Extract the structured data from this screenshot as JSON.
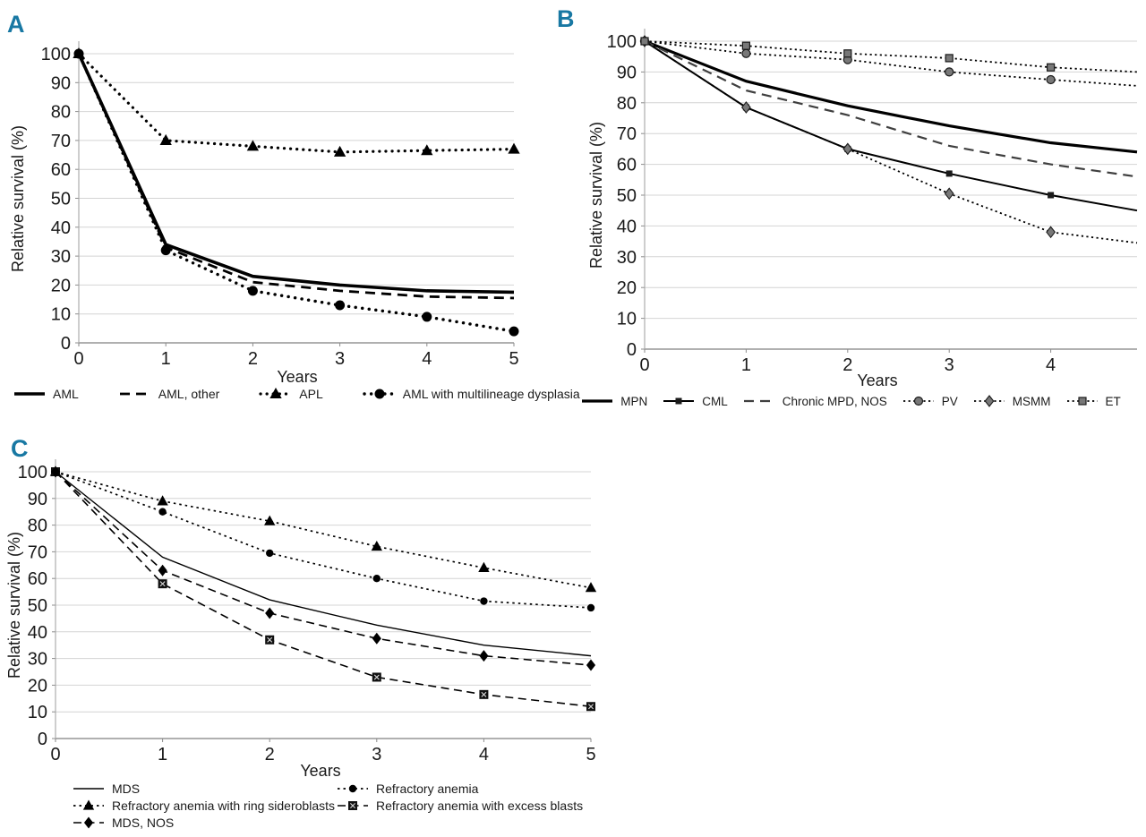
{
  "figure": {
    "background": "#ffffff",
    "panel_letter_color": "#1878a3",
    "grid_color": "#d4d4d4",
    "axis_color": "#8c8c8c",
    "text_color": "#1a1a1a"
  },
  "chart_data": [
    {
      "type": "line",
      "panel_label": "A",
      "title": "",
      "xlabel": "Years",
      "ylabel": "Relative survival (%)",
      "x": [
        0,
        1,
        2,
        3,
        4,
        5
      ],
      "x_ticks": [
        0,
        1,
        2,
        3,
        4,
        5
      ],
      "y_ticks": [
        0,
        10,
        20,
        30,
        40,
        50,
        60,
        70,
        80,
        90,
        100
      ],
      "xlim": [
        0,
        5
      ],
      "ylim": [
        0,
        100
      ],
      "grid": "horizontal",
      "legend_position": "bottom-row",
      "series": [
        {
          "name": "AML",
          "values": [
            100,
            34,
            23,
            20,
            18,
            17.5
          ],
          "color": "#000000",
          "line_width": 3.6,
          "dash": "",
          "linecap": "butt",
          "marker": "none",
          "marker_size": 0,
          "marker_fill": "#000000",
          "marker_stroke": "none"
        },
        {
          "name": "AML, other",
          "values": [
            100,
            33,
            21,
            18,
            16,
            15.5
          ],
          "color": "#000000",
          "line_width": 2.8,
          "dash": "11 7",
          "linecap": "butt",
          "marker": "none",
          "marker_size": 0,
          "marker_fill": "#000000",
          "marker_stroke": "none"
        },
        {
          "name": "APL",
          "values": [
            100,
            70,
            68,
            66,
            66.5,
            67
          ],
          "color": "#000000",
          "line_width": 3.2,
          "dash": "0.1 7",
          "linecap": "round",
          "marker": "triangle",
          "marker_size": 7,
          "marker_fill": "#000000",
          "marker_stroke": "none"
        },
        {
          "name": "AML with multilineage dysplasia",
          "values": [
            100,
            32,
            18,
            13,
            9,
            4
          ],
          "color": "#000000",
          "line_width": 3.4,
          "dash": "0.1 7.5",
          "linecap": "round",
          "marker": "circle",
          "marker_size": 5.5,
          "marker_fill": "#000000",
          "marker_stroke": "none"
        }
      ]
    },
    {
      "type": "line",
      "panel_label": "B",
      "title": "",
      "xlabel": "Years",
      "ylabel": "Relative survival (%)",
      "x": [
        0,
        1,
        2,
        3,
        4,
        4.85
      ],
      "x_ticks": [
        0,
        1,
        2,
        3,
        4
      ],
      "y_ticks": [
        0,
        10,
        20,
        30,
        40,
        50,
        60,
        70,
        80,
        90,
        100
      ],
      "xlim": [
        0,
        4.85
      ],
      "ylim": [
        0,
        100
      ],
      "grid": "horizontal",
      "legend_position": "bottom-row",
      "series": [
        {
          "name": "MPN",
          "values": [
            100,
            87,
            79,
            72.5,
            67,
            64
          ],
          "color": "#000000",
          "line_width": 3.2,
          "dash": "",
          "linecap": "butt",
          "marker": "none",
          "marker_size": 0,
          "marker_fill": "#000000",
          "marker_stroke": "none"
        },
        {
          "name": "CML",
          "values": [
            100,
            78.5,
            65,
            57,
            50,
            45
          ],
          "color": "#000000",
          "line_width": 2,
          "dash": "",
          "linecap": "butt",
          "marker": "square",
          "marker_size": 7,
          "marker_fill": "#1a1a1a",
          "marker_stroke": "none"
        },
        {
          "name": "Chronic MPD, NOS",
          "values": [
            100,
            84,
            76,
            66,
            60,
            56
          ],
          "color": "#3f3f3f",
          "line_width": 2.2,
          "dash": "11 7",
          "linecap": "butt",
          "marker": "none",
          "marker_size": 0,
          "marker_fill": "#000000",
          "marker_stroke": "none"
        },
        {
          "name": "PV",
          "values": [
            100,
            96,
            94,
            90,
            87.5,
            85.5
          ],
          "color": "#000000",
          "line_width": 1.8,
          "dash": "2.2 3.4",
          "linecap": "butt",
          "marker": "circle",
          "marker_size": 4.5,
          "marker_fill": "#787878",
          "marker_stroke": "#1a1a1a"
        },
        {
          "name": "MSMM",
          "values": [
            100,
            78.5,
            65,
            50.5,
            38,
            34.5
          ],
          "color": "#000000",
          "line_width": 1.8,
          "dash": "2.2 3.4",
          "linecap": "butt",
          "marker": "diamond",
          "marker_size": 6,
          "marker_fill": "#787878",
          "marker_stroke": "#1a1a1a"
        },
        {
          "name": "ET",
          "values": [
            100,
            98.5,
            96,
            94.5,
            91.5,
            90
          ],
          "color": "#000000",
          "line_width": 1.8,
          "dash": "2.2 3.4",
          "linecap": "butt",
          "marker": "square",
          "marker_size": 8,
          "marker_fill": "#787878",
          "marker_stroke": "#1a1a1a"
        }
      ]
    },
    {
      "type": "line",
      "panel_label": "C",
      "title": "",
      "xlabel": "Years",
      "ylabel": "Relative survival (%)",
      "x": [
        0,
        1,
        2,
        3,
        4,
        5
      ],
      "x_ticks": [
        0,
        1,
        2,
        3,
        4,
        5
      ],
      "y_ticks": [
        0,
        10,
        20,
        30,
        40,
        50,
        60,
        70,
        80,
        90,
        100
      ],
      "xlim": [
        0,
        5
      ],
      "ylim": [
        0,
        100
      ],
      "grid": "horizontal",
      "legend_position": "bottom-two-columns",
      "series": [
        {
          "name": "MDS",
          "values": [
            100,
            68,
            52,
            42.5,
            35,
            31
          ],
          "color": "#000000",
          "line_width": 1.4,
          "dash": "",
          "linecap": "butt",
          "marker": "none",
          "marker_size": 0,
          "marker_fill": "#000000",
          "marker_stroke": "none"
        },
        {
          "name": "Refractory anemia",
          "values": [
            100,
            85,
            69.5,
            60,
            51.5,
            49
          ],
          "color": "#000000",
          "line_width": 1.7,
          "dash": "2.5 4",
          "linecap": "butt",
          "marker": "circle",
          "marker_size": 4.2,
          "marker_fill": "#000000",
          "marker_stroke": "none"
        },
        {
          "name": "Refractory anemia with ring sideroblasts",
          "values": [
            100,
            89,
            81.5,
            72,
            64,
            56.5
          ],
          "color": "#000000",
          "line_width": 1.7,
          "dash": "2.5 4",
          "linecap": "butt",
          "marker": "triangle",
          "marker_size": 6.5,
          "marker_fill": "#000000",
          "marker_stroke": "none"
        },
        {
          "name": "Refractory anemia with excess blasts",
          "values": [
            100,
            58,
            37,
            23,
            16.5,
            12
          ],
          "color": "#000000",
          "line_width": 1.6,
          "dash": "9 5.5",
          "linecap": "butt",
          "marker": "square-x",
          "marker_size": 10,
          "marker_fill": "#111111",
          "marker_stroke": "none"
        },
        {
          "name": "MDS, NOS",
          "values": [
            100,
            63,
            47,
            37.5,
            31,
            27.5
          ],
          "color": "#000000",
          "line_width": 1.6,
          "dash": "9 5.5",
          "linecap": "butt",
          "marker": "diamond",
          "marker_size": 6.5,
          "marker_fill": "#000000",
          "marker_stroke": "none"
        }
      ]
    }
  ]
}
